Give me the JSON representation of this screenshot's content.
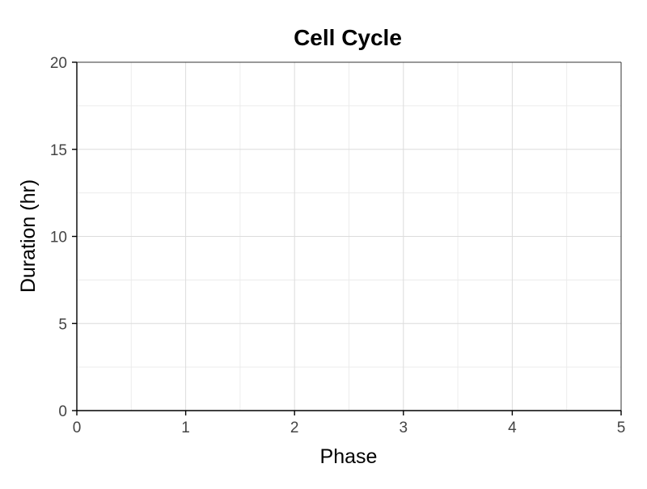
{
  "chart_data": {
    "type": "bar",
    "title": "Cell Cycle",
    "xlabel": "Phase",
    "ylabel": "Duration (hr)",
    "categories": [],
    "values": [],
    "xlim": [
      0,
      5
    ],
    "ylim": [
      0,
      20
    ],
    "x_ticks": [
      "0",
      "1",
      "2",
      "3",
      "4",
      "5"
    ],
    "y_ticks": [
      "0",
      "5",
      "10",
      "15",
      "20"
    ],
    "grid": true,
    "colors": {
      "background": "#ffffff",
      "grid_major": "#dcdcdc",
      "grid_minor": "#ececec",
      "axis": "#000000",
      "tick_label": "#444444"
    }
  }
}
